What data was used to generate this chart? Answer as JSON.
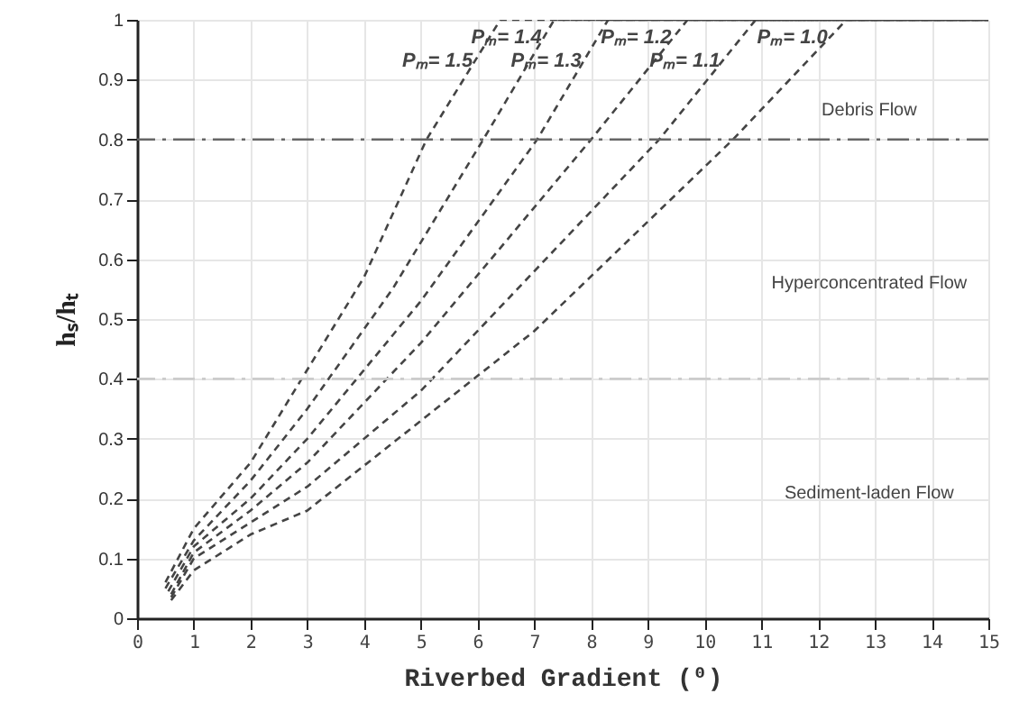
{
  "chart_data": {
    "type": "line",
    "xlabel": "Riverbed Gradient (⁰)",
    "ylabel": "hₛ/hₜ",
    "xlim": [
      0,
      15
    ],
    "xticks": [
      0,
      1,
      2,
      3,
      4,
      5,
      6,
      7,
      8,
      9,
      10,
      11,
      12,
      13,
      14,
      15
    ],
    "ylim": [
      0,
      1
    ],
    "yticks": [
      0,
      0.1,
      0.2,
      0.3,
      0.4,
      0.5,
      0.6,
      0.7,
      0.8,
      0.9,
      1
    ],
    "grid": true,
    "line_style": "dashed",
    "marker": "none",
    "series": [
      {
        "name": "Pₘ= 1.5",
        "color": "#444444",
        "x": [
          0.5,
          1,
          2,
          2.9,
          4,
          5.1,
          6.4,
          15
        ],
        "values": [
          0.06,
          0.15,
          0.26,
          0.4,
          0.57,
          0.8,
          1,
          1
        ]
      },
      {
        "name": "Pₘ= 1.4",
        "color": "#444444",
        "x": [
          0.5,
          1,
          2,
          3,
          4.5,
          6.1,
          7.35,
          15
        ],
        "values": [
          0.05,
          0.13,
          0.23,
          0.35,
          0.55,
          0.8,
          1,
          1
        ]
      },
      {
        "name": "Pₘ= 1.3",
        "color": "#444444",
        "x": [
          0.55,
          1,
          2,
          3,
          5,
          7.05,
          8.3,
          15
        ],
        "values": [
          0.045,
          0.12,
          0.2,
          0.3,
          0.53,
          0.8,
          1,
          1
        ]
      },
      {
        "name": "Pₘ= 1.2",
        "color": "#444444",
        "x": [
          0.6,
          1,
          2,
          3,
          5,
          8,
          9.7,
          15
        ],
        "values": [
          0.04,
          0.11,
          0.18,
          0.26,
          0.46,
          0.8,
          1,
          1
        ]
      },
      {
        "name": "Pₘ= 1.1",
        "color": "#444444",
        "x": [
          0.6,
          1,
          2,
          3,
          5,
          9.2,
          10.9,
          15
        ],
        "values": [
          0.035,
          0.1,
          0.16,
          0.22,
          0.38,
          0.8,
          1,
          1
        ]
      },
      {
        "name": "Pₘ= 1.0",
        "color": "#444444",
        "x": [
          0.6,
          1,
          2,
          3,
          5,
          7,
          10.5,
          12.5,
          15
        ],
        "values": [
          0.03,
          0.08,
          0.14,
          0.18,
          0.33,
          0.48,
          0.8,
          1,
          1
        ]
      }
    ],
    "ref_lines": [
      {
        "axis": "y",
        "value": 0.8,
        "color": "#666666",
        "line_style": "dashdot"
      },
      {
        "axis": "y",
        "value": 0.4,
        "color": "#cccccc",
        "line_style": "dashdot"
      }
    ],
    "annotations": [
      "Debris Flow",
      "Hyperconcentrated Flow",
      "Sediment-laden Flow"
    ]
  }
}
